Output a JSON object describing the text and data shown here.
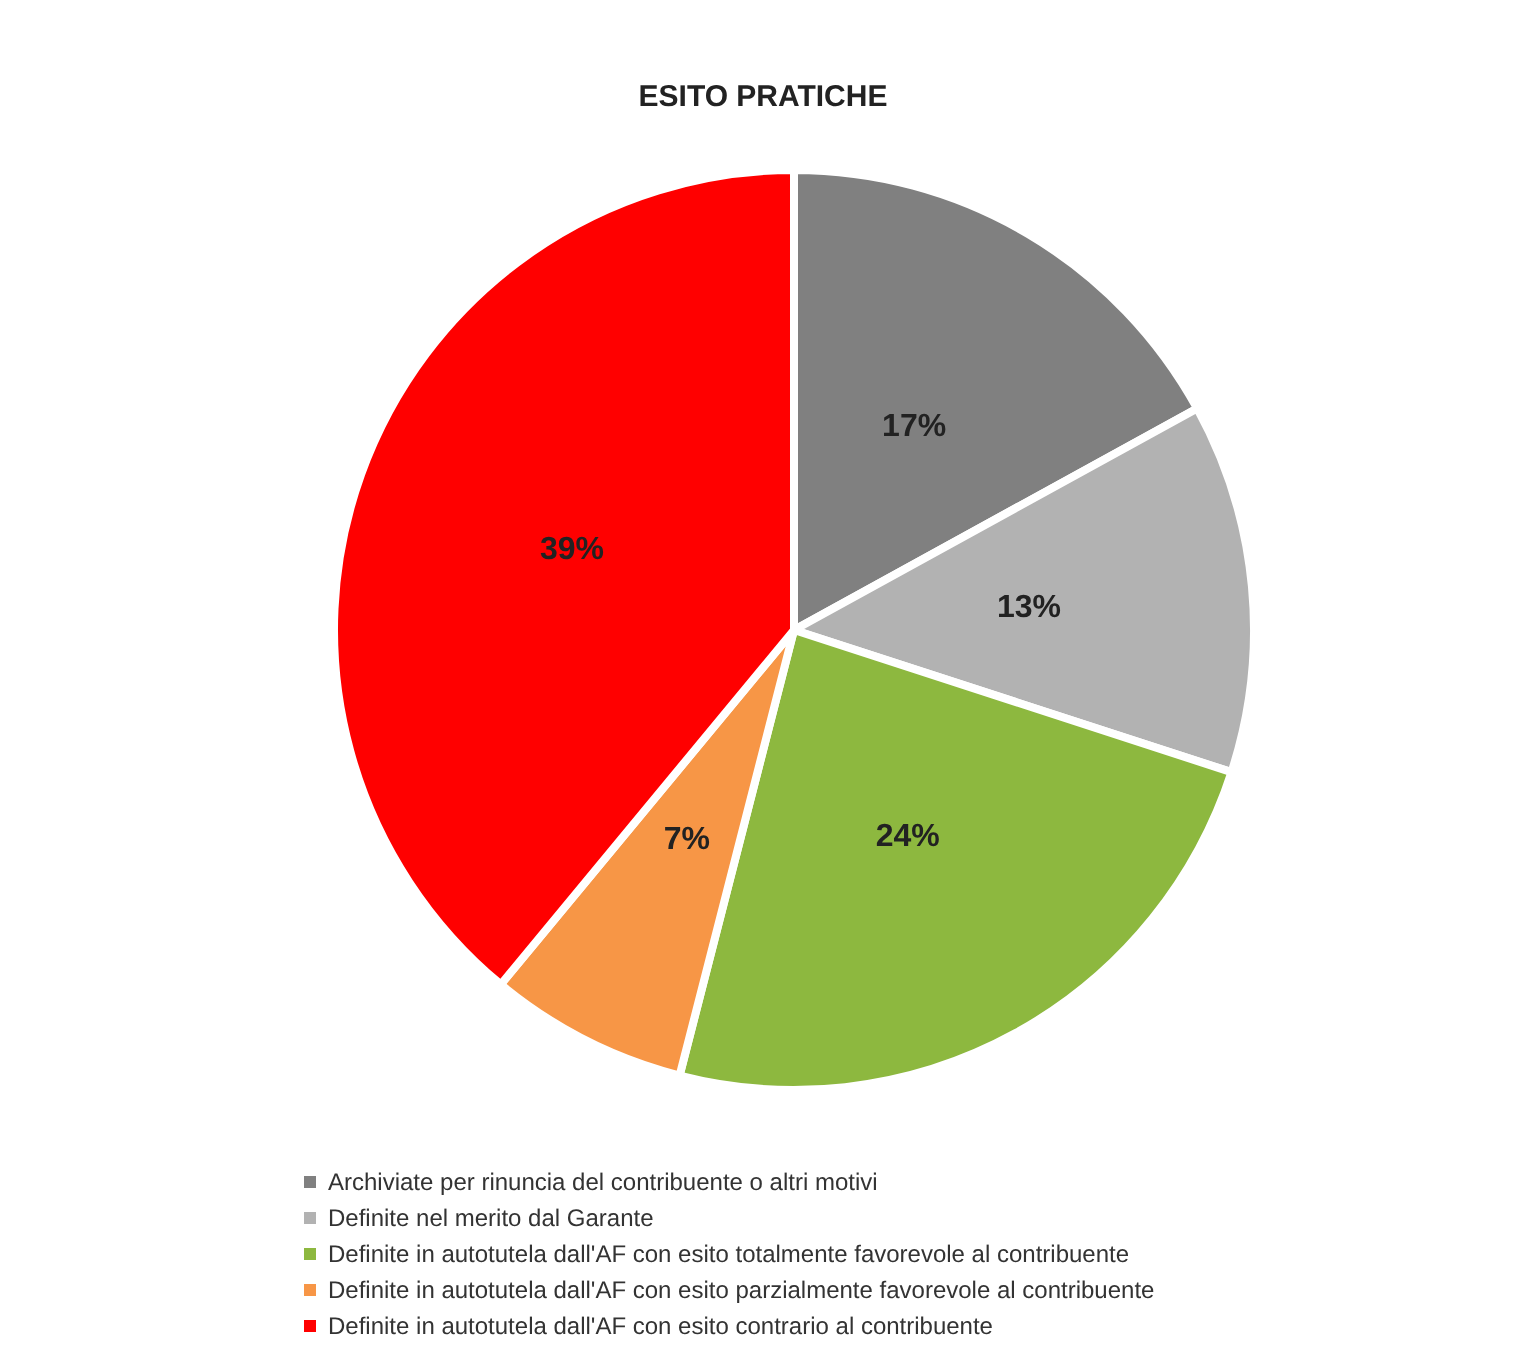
{
  "chart_data": {
    "type": "pie",
    "title": "ESITO PRATICHE",
    "categories": [
      "Archiviate per rinuncia del contribuente o altri motivi",
      "Definite nel merito dal Garante",
      "Definite in autotutela dall'AF con esito totalmente favorevole al contribuente",
      "Definite in autotutela dall'AF con esito parzialmente favorevole al contribuente",
      "Definite in autotutela dall'AF con esito contrario al contribuente"
    ],
    "values": [
      17,
      13,
      24,
      7,
      39
    ],
    "colors": [
      "#808080",
      "#b2b2b2",
      "#8db83f",
      "#f79646",
      "#ff0000"
    ],
    "value_labels": [
      "17%",
      "13%",
      "24%",
      "7%",
      "39%"
    ],
    "legend": "bottom left"
  }
}
